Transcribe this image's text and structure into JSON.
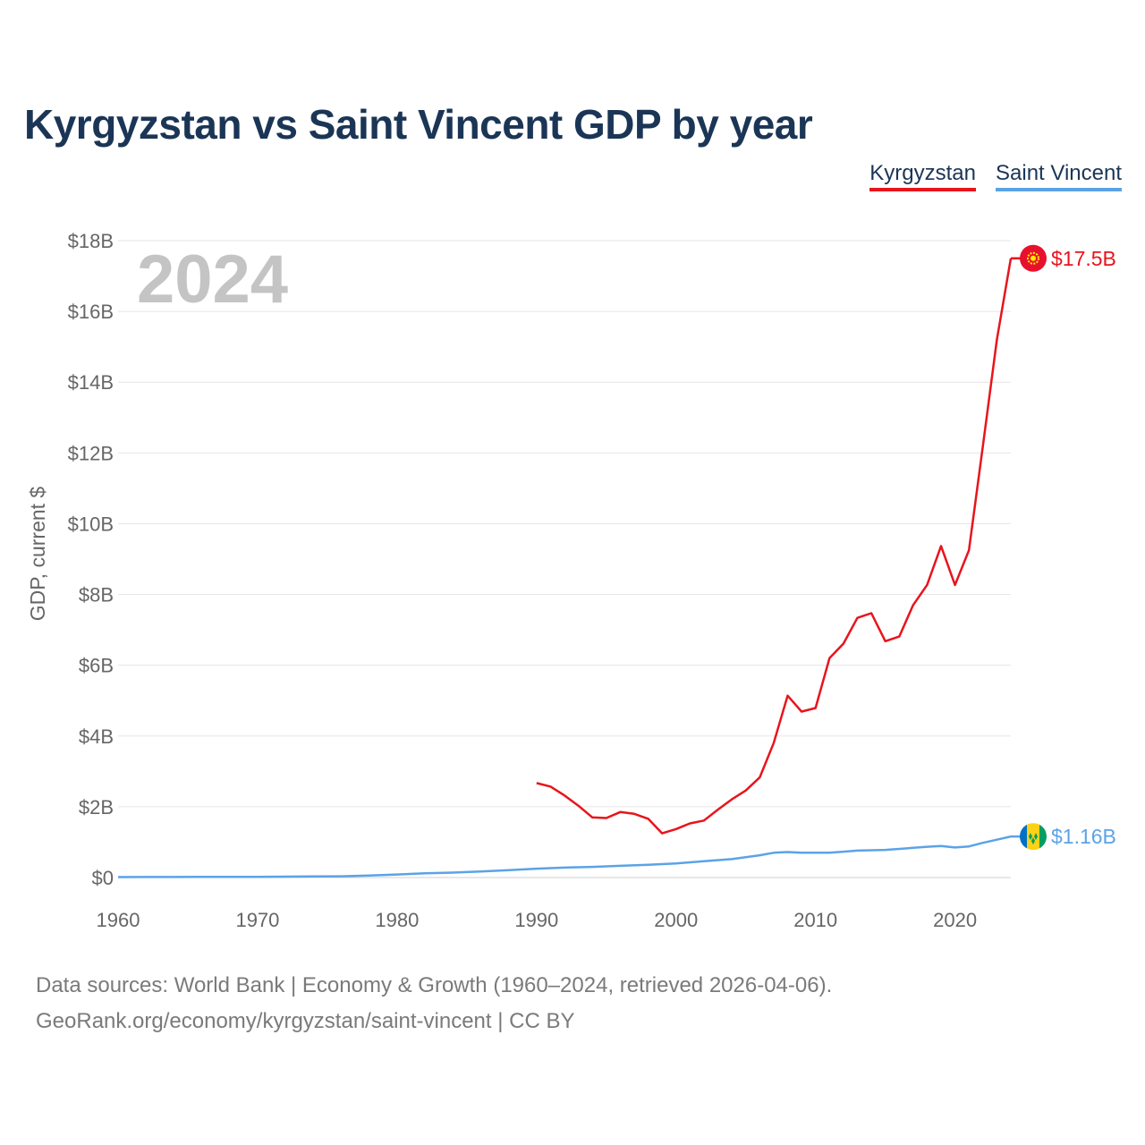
{
  "title": "Kyrgyzstan vs Saint Vincent GDP by year",
  "legend": {
    "kyrgyzstan": "Kyrgyzstan",
    "saint_vincent": "Saint Vincent"
  },
  "colors": {
    "kyrgyzstan": "#e8141c",
    "saint_vincent": "#5ba3e6",
    "title": "#1b3556"
  },
  "source": {
    "line1": "Data sources: World Bank | Economy & Growth (1960–2024, retrieved 2026-04-06).",
    "line2": "GeoRank.org/economy/kyrgyzstan/saint-vincent | CC BY"
  },
  "chart_data": {
    "type": "line",
    "title": "Kyrgyzstan vs Saint Vincent GDP by year",
    "ylabel": "GDP, current $",
    "xlabel": "",
    "year_label": "2024",
    "xlim": [
      1960,
      2024
    ],
    "ylim": [
      0,
      18
    ],
    "x_ticks": [
      1960,
      1970,
      1980,
      1990,
      2000,
      2010,
      2020
    ],
    "y_ticks": [
      0,
      2,
      4,
      6,
      8,
      10,
      12,
      14,
      16,
      18
    ],
    "y_tick_labels": [
      "$0",
      "$2B",
      "$4B",
      "$6B",
      "$8B",
      "$10B",
      "$12B",
      "$14B",
      "$16B",
      "$18B"
    ],
    "grid": true,
    "series": [
      {
        "name": "Kyrgyzstan",
        "end_label": "$17.5B",
        "x": [
          1990,
          1991,
          1992,
          1993,
          1994,
          1995,
          1996,
          1997,
          1998,
          1999,
          2000,
          2001,
          2002,
          2003,
          2004,
          2005,
          2006,
          2007,
          2008,
          2009,
          2010,
          2011,
          2012,
          2013,
          2014,
          2015,
          2016,
          2017,
          2018,
          2019,
          2020,
          2021,
          2022,
          2023,
          2024
        ],
        "values": [
          2.67,
          2.57,
          2.32,
          2.03,
          1.7,
          1.68,
          1.85,
          1.8,
          1.66,
          1.25,
          1.37,
          1.53,
          1.61,
          1.92,
          2.21,
          2.46,
          2.83,
          3.8,
          5.14,
          4.69,
          4.79,
          6.2,
          6.61,
          7.34,
          7.47,
          6.68,
          6.81,
          7.7,
          8.27,
          9.37,
          8.27,
          9.25,
          12.2,
          15.2,
          17.5
        ]
      },
      {
        "name": "Saint Vincent",
        "end_label": "$1.16B",
        "x": [
          1960,
          1962,
          1964,
          1966,
          1968,
          1970,
          1972,
          1974,
          1976,
          1978,
          1980,
          1982,
          1984,
          1986,
          1988,
          1990,
          1992,
          1994,
          1996,
          1998,
          2000,
          2002,
          2004,
          2006,
          2007,
          2008,
          2009,
          2010,
          2011,
          2012,
          2013,
          2014,
          2015,
          2016,
          2017,
          2018,
          2019,
          2020,
          2021,
          2022,
          2023,
          2024
        ],
        "values": [
          0.013,
          0.014,
          0.015,
          0.018,
          0.017,
          0.02,
          0.026,
          0.031,
          0.035,
          0.055,
          0.085,
          0.12,
          0.14,
          0.17,
          0.21,
          0.25,
          0.28,
          0.3,
          0.33,
          0.36,
          0.4,
          0.46,
          0.52,
          0.63,
          0.7,
          0.72,
          0.7,
          0.7,
          0.7,
          0.73,
          0.76,
          0.77,
          0.78,
          0.81,
          0.84,
          0.87,
          0.89,
          0.85,
          0.88,
          0.98,
          1.07,
          1.16
        ]
      }
    ]
  }
}
